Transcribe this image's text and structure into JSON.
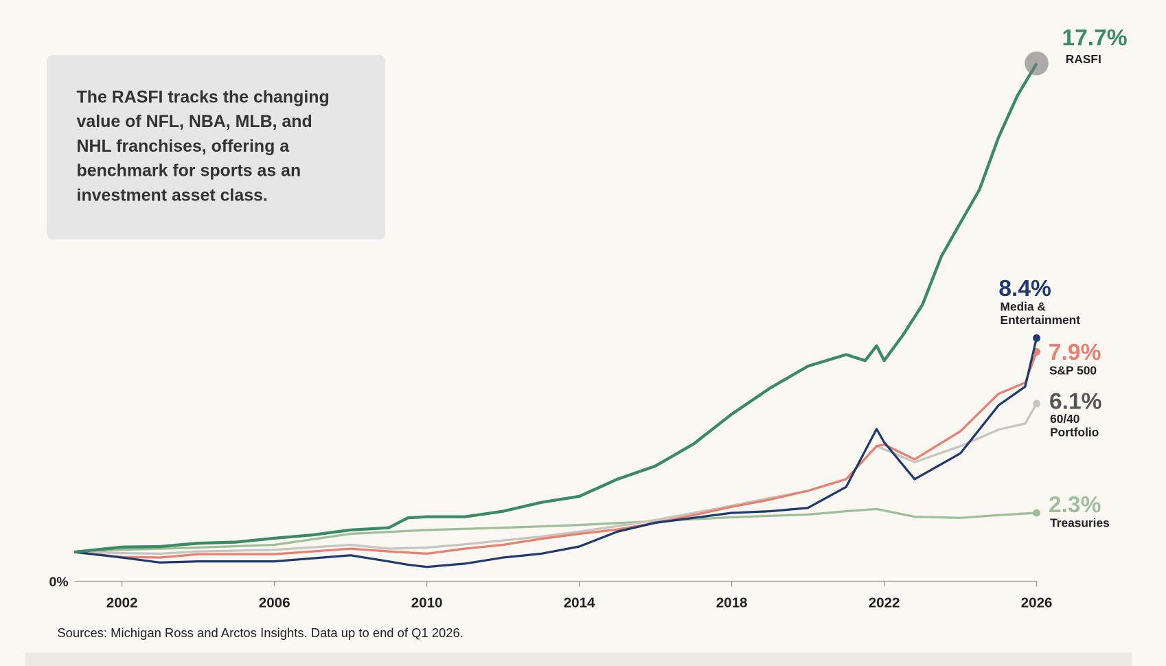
{
  "chart_data": {
    "type": "line",
    "description": "The RASFI tracks the changing value of NFL, NBA, MLB, and NHL franchises, offering a benchmark for sports as an investment asset class.",
    "source": "Sources: Michigan Ross and Arctos Insights. Data up to end of Q1 2026.",
    "xlim": [
      2000.75,
      2026
    ],
    "xticks": [
      2002,
      2006,
      2010,
      2014,
      2018,
      2022,
      2026
    ],
    "ylim": [
      0,
      100
    ],
    "yticks": [
      {
        "value": 0,
        "label": "0%"
      }
    ],
    "series": [
      {
        "name": "RASFI",
        "end_label": "17.7%",
        "color": "#3a8a66",
        "label_color": "#3a8a66",
        "x": [
          2000.75,
          2002,
          2003,
          2004,
          2005,
          2006,
          2007,
          2008,
          2009,
          2009.5,
          2010,
          2011,
          2012,
          2013,
          2014,
          2015,
          2016,
          2017,
          2018,
          2019,
          2020,
          2021,
          2021.5,
          2021.8,
          2022,
          2022.5,
          2023,
          2023.5,
          2024,
          2024.5,
          2025,
          2025.5,
          2026
        ],
        "values": [
          5.3,
          6.2,
          6.3,
          6.9,
          7.1,
          7.8,
          8.4,
          9.3,
          9.7,
          11.5,
          11.7,
          11.7,
          12.7,
          14.3,
          15.4,
          18.5,
          20.9,
          24.9,
          30.3,
          35.0,
          39.0,
          41.1,
          40.0,
          42.7,
          40.0,
          44.7,
          50.1,
          58.9,
          65.0,
          71.0,
          80.5,
          88.1,
          93.9
        ]
      },
      {
        "name": "Media & Entertainment",
        "end_label": "8.4%",
        "color": "#1f3a6e",
        "label_color": "#1f3a6e",
        "x": [
          2000.75,
          2002,
          2003,
          2004,
          2006,
          2008,
          2009,
          2009.5,
          2010,
          2011,
          2012,
          2013,
          2014,
          2015,
          2016,
          2017,
          2018,
          2019,
          2020,
          2021,
          2021.8,
          2022,
          2022.8,
          2024,
          2025,
          2025.7,
          2026
        ],
        "values": [
          5.3,
          4.3,
          3.4,
          3.6,
          3.6,
          4.7,
          3.6,
          3.0,
          2.6,
          3.2,
          4.3,
          5.0,
          6.3,
          9.0,
          10.6,
          11.5,
          12.4,
          12.7,
          13.3,
          17.1,
          27.6,
          25.2,
          18.5,
          23.2,
          31.9,
          35.3,
          44.1
        ]
      },
      {
        "name": "S&P 500",
        "end_label": "7.9%",
        "color": "#e8806f",
        "label_color": "#e8806f",
        "x": [
          2000.75,
          2002,
          2003,
          2004,
          2006,
          2008,
          2009,
          2010,
          2011,
          2012,
          2013,
          2014,
          2015,
          2016,
          2017,
          2018,
          2019,
          2020,
          2021,
          2021.8,
          2022,
          2022.8,
          2024,
          2025,
          2025.7,
          2026
        ],
        "values": [
          5.3,
          4.4,
          4.3,
          4.9,
          4.9,
          5.9,
          5.4,
          5.0,
          5.9,
          6.6,
          7.7,
          8.6,
          9.4,
          10.6,
          12.0,
          13.5,
          14.8,
          16.4,
          18.5,
          24.5,
          24.8,
          22.1,
          27.2,
          34.0,
          36.0,
          41.6
        ]
      },
      {
        "name": "60/40 Portfolio",
        "end_label": "6.1%",
        "color": "#c8c4be",
        "label_color": "#555555",
        "x": [
          2000.75,
          2002,
          2003,
          2004,
          2006,
          2008,
          2009,
          2010,
          2011,
          2012,
          2013,
          2014,
          2015,
          2016,
          2017,
          2018,
          2019,
          2020,
          2021,
          2021.8,
          2022.8,
          2024,
          2025,
          2025.7,
          2026
        ],
        "values": [
          5.3,
          5.1,
          5.0,
          5.4,
          5.7,
          6.6,
          5.9,
          6.1,
          6.7,
          7.4,
          8.1,
          9.0,
          10.0,
          11.1,
          12.4,
          13.7,
          15.1,
          16.4,
          18.5,
          24.5,
          21.6,
          24.5,
          27.5,
          28.6,
          32.2
        ]
      },
      {
        "name": "Treasuries",
        "end_label": "2.3%",
        "color": "#9fbf9a",
        "label_color": "#9fbf9a",
        "x": [
          2000.75,
          2002,
          2004,
          2006,
          2008,
          2010,
          2012,
          2014,
          2016,
          2018,
          2020,
          2021,
          2021.8,
          2022.8,
          2024,
          2025,
          2026
        ],
        "values": [
          5.3,
          5.7,
          6.1,
          6.6,
          8.6,
          9.3,
          9.7,
          10.2,
          10.9,
          11.6,
          12.1,
          12.7,
          13.1,
          11.7,
          11.5,
          12.0,
          12.4
        ]
      }
    ]
  }
}
